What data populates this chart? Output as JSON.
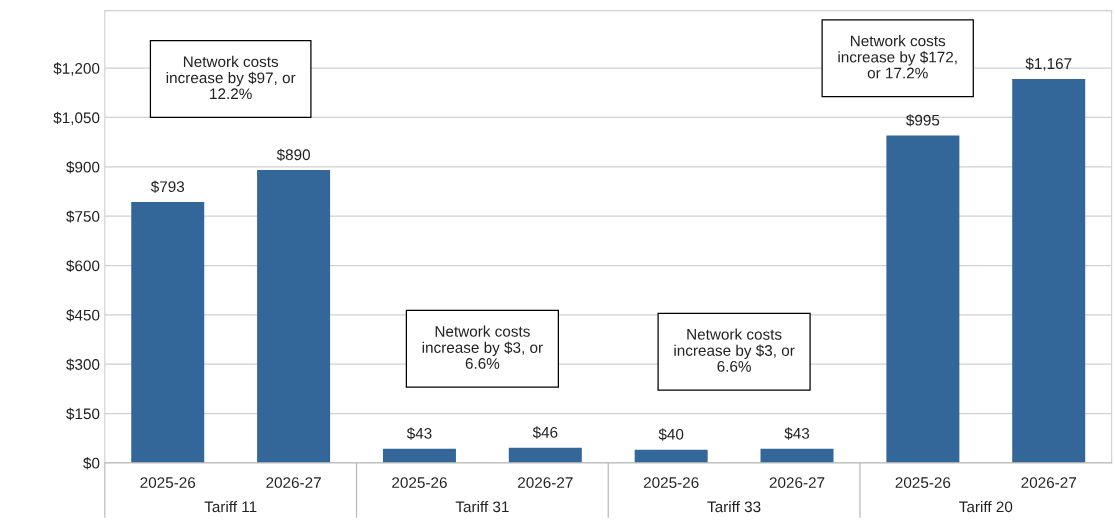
{
  "chart_data": {
    "type": "bar",
    "categories": [
      "2025-26",
      "2026-27",
      "2025-26",
      "2026-27",
      "2025-26",
      "2026-27",
      "2025-26",
      "2026-27"
    ],
    "values": [
      793,
      890,
      43,
      46,
      40,
      43,
      995,
      1167
    ],
    "value_labels": [
      "$793",
      "$890",
      "$43",
      "$46",
      "$40",
      "$43",
      "$995",
      "$1,167"
    ],
    "color": "#336699",
    "ylim": [
      0,
      1375
    ],
    "yticks": [
      {
        "value": 0,
        "label": "$0"
      },
      {
        "value": 150,
        "label": "$150"
      },
      {
        "value": 300,
        "label": "$300"
      },
      {
        "value": 450,
        "label": "$450"
      },
      {
        "value": 600,
        "label": "$600"
      },
      {
        "value": 750,
        "label": "$750"
      },
      {
        "value": 900,
        "label": "$900"
      },
      {
        "value": 1050,
        "label": "$1,050"
      },
      {
        "value": 1200,
        "label": "$1,200"
      }
    ],
    "grid": "y",
    "annotations": [
      "Network costs\nincrease by $97, or\n12.2%",
      "Network costs\nincrease by $3, or\n6.6%",
      "Network costs\nincrease by $3, or\n6.6%",
      "Network costs\nincrease by $172,\nor 17.2%",
      "Tariff 11",
      "Tariff 31",
      "Tariff 33",
      "Tariff 20"
    ]
  }
}
